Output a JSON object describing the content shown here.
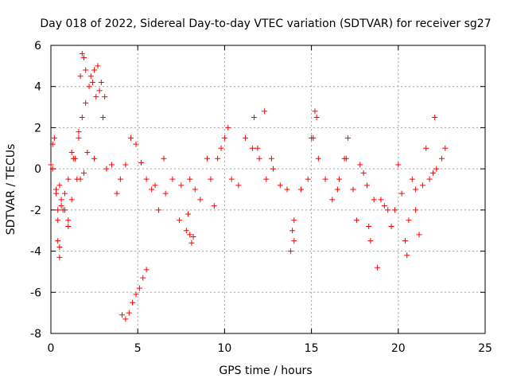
{
  "chart_data": {
    "type": "scatter",
    "title": "Day 018 of 2022, Sidereal Day-to-day VTEC variation (SDTVAR) for receiver sg27",
    "xlabel": "GPS time / hours",
    "ylabel": "SDTVAR / TECUs",
    "xlim": [
      0,
      25
    ],
    "ylim": [
      -8,
      6
    ],
    "x_ticks": [
      "0",
      "5",
      "10",
      "15",
      "20",
      "25"
    ],
    "y_ticks": [
      "6",
      "4",
      "2",
      "0",
      "-2",
      "-4",
      "-6",
      "-8"
    ],
    "grid": true,
    "marker": "+",
    "color": "#ff0000",
    "series": [
      {
        "name": "SDTVAR",
        "x": [
          0.0,
          0.1,
          0.2,
          0.3,
          0.4,
          0.5,
          0.6,
          0.8,
          1.0,
          1.2,
          1.4,
          1.6,
          1.8,
          2.0,
          2.2,
          2.4,
          2.6,
          2.8,
          3.0,
          3.2,
          3.5,
          3.8,
          4.0,
          4.3,
          4.6,
          4.9,
          5.2,
          5.5,
          5.8,
          6.2,
          6.6,
          7.0,
          7.4,
          7.8,
          8.0,
          8.3,
          8.6,
          9.0,
          9.4,
          9.8,
          10.0,
          10.4,
          10.8,
          11.2,
          11.6,
          12.0,
          12.4,
          12.8,
          13.2,
          13.6,
          14.0,
          14.4,
          14.8,
          15.0,
          15.4,
          15.8,
          16.2,
          16.6,
          17.0,
          17.4,
          17.8,
          18.2,
          18.6,
          19.0,
          19.4,
          19.8,
          20.2,
          20.6,
          21.0,
          21.4,
          21.8,
          22.0,
          22.2,
          22.5,
          22.7,
          0.3,
          0.5,
          0.7,
          1.0,
          1.3,
          1.7,
          1.8,
          1.9,
          2.0,
          2.3,
          2.5,
          2.7,
          2.9,
          3.1,
          0.1,
          0.4,
          0.4,
          0.5,
          0.6,
          0.8,
          1.0,
          1.2,
          1.5,
          8.0,
          8.1,
          8.2,
          7.9,
          13.8,
          14.0,
          13.9,
          18.3,
          18.4,
          20.4,
          20.5,
          21.0,
          4.1,
          4.3,
          4.5,
          4.7,
          4.9,
          5.1,
          5.3,
          5.5,
          1.6,
          1.7,
          1.9,
          2.1,
          2.5,
          6.0,
          6.5,
          7.5,
          9.2,
          9.6,
          10.2,
          11.7,
          11.9,
          12.3,
          12.7,
          15.1,
          15.2,
          15.3,
          16.5,
          16.9,
          17.1,
          17.6,
          18.0,
          18.8,
          19.2,
          19.6,
          20.0,
          20.8,
          21.2,
          21.6,
          22.1
        ],
        "y": [
          0.2,
          1.2,
          1.5,
          -1.0,
          -2.5,
          -3.8,
          -1.5,
          -2.0,
          -2.8,
          -1.5,
          0.5,
          1.5,
          2.5,
          3.2,
          4.0,
          4.2,
          3.5,
          3.8,
          2.5,
          0.0,
          0.2,
          -1.2,
          -0.5,
          0.2,
          1.5,
          1.2,
          0.3,
          -0.5,
          -1.0,
          -2.0,
          -1.2,
          -0.5,
          -2.5,
          -3.0,
          -0.5,
          -1.0,
          -1.5,
          0.5,
          -1.8,
          1.0,
          1.5,
          -0.5,
          -0.8,
          1.5,
          1.0,
          0.5,
          -0.5,
          0.0,
          -0.8,
          -1.0,
          -2.5,
          -1.0,
          -0.5,
          1.5,
          0.5,
          -0.5,
          -1.5,
          -0.5,
          0.5,
          -1.0,
          0.2,
          -0.8,
          -1.5,
          -1.5,
          -2.0,
          -2.0,
          -1.2,
          -2.5,
          -1.0,
          -0.8,
          -0.5,
          -0.2,
          0.0,
          0.5,
          1.0,
          -1.2,
          -0.8,
          -2.0,
          -2.5,
          0.5,
          4.5,
          5.6,
          5.4,
          4.8,
          4.5,
          4.8,
          5.0,
          4.2,
          3.5,
          0.0,
          -2.0,
          -3.5,
          -4.3,
          -1.8,
          -1.2,
          -0.5,
          0.8,
          -0.5,
          -3.2,
          -3.6,
          -3.3,
          -2.2,
          -4.0,
          -3.5,
          -3.0,
          -2.8,
          -3.5,
          -3.5,
          -4.2,
          -2.0,
          -7.1,
          -7.3,
          -7.0,
          -6.5,
          -6.1,
          -5.8,
          -5.3,
          -4.9,
          1.8,
          -0.5,
          -0.2,
          0.8,
          0.5,
          -0.8,
          0.5,
          -0.8,
          -0.5,
          0.5,
          2.0,
          2.5,
          1.0,
          2.8,
          0.5,
          1.5,
          2.8,
          2.5,
          -1.0,
          0.5,
          1.5,
          -2.5,
          -0.2,
          -4.8,
          -1.8,
          -2.8,
          0.2,
          -0.5,
          -3.2,
          1.0,
          2.5
        ]
      }
    ]
  }
}
